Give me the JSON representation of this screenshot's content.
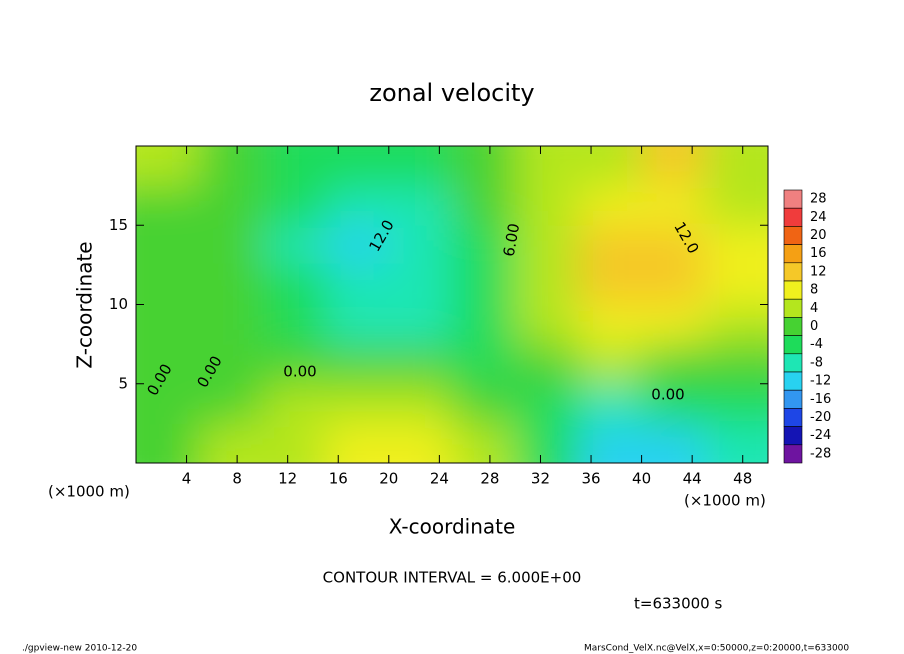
{
  "chart_data": {
    "type": "contour",
    "title": "zonal velocity",
    "xlabel": "X-coordinate",
    "ylabel": "Z-coordinate",
    "x_unit": "(×1000 m)",
    "y_unit": "(×1000 m)",
    "xlim": [
      0,
      50
    ],
    "ylim": [
      0,
      20
    ],
    "xticks": [
      4,
      8,
      12,
      16,
      20,
      24,
      28,
      32,
      36,
      40,
      44,
      48
    ],
    "yticks": [
      5,
      10,
      15
    ],
    "x": [
      2.5,
      7.5,
      12.5,
      17.5,
      22.5,
      27.5,
      32.5,
      37.5,
      42.5,
      47.5
    ],
    "y": [
      1.25,
      3.75,
      6.25,
      8.75,
      11.25,
      13.75,
      16.25,
      18.75
    ],
    "z": [
      [
        0,
        2,
        4,
        6,
        6,
        2,
        -4,
        -14,
        -14,
        -8
      ],
      [
        -2,
        0,
        2,
        4,
        4,
        0,
        -4,
        -8,
        -6,
        -4
      ],
      [
        0,
        0,
        0,
        0,
        0,
        -4,
        0,
        2,
        0,
        -2
      ],
      [
        0,
        0,
        -4,
        -8,
        -8,
        -6,
        2,
        6,
        6,
        4
      ],
      [
        0,
        0,
        -6,
        -10,
        -10,
        -6,
        4,
        10,
        10,
        6
      ],
      [
        0,
        -2,
        -8,
        -12,
        -10,
        -4,
        4,
        10,
        10,
        6
      ],
      [
        0,
        -2,
        -6,
        -10,
        -8,
        -2,
        2,
        6,
        6,
        4
      ],
      [
        2,
        0,
        -4,
        -4,
        -4,
        0,
        2,
        4,
        10,
        4
      ]
    ],
    "levels": [
      28,
      24,
      20,
      16,
      12,
      8,
      4,
      0,
      -4,
      -8,
      -12,
      -16,
      -20,
      -24,
      -28
    ],
    "colors": [
      "#f08080",
      "#f03c3c",
      "#f06414",
      "#f5a014",
      "#f5c828",
      "#f0f01e",
      "#b4e61e",
      "#46d232",
      "#1edc5a",
      "#1ee6b4",
      "#28d2f0",
      "#3296f0",
      "#1e46e6",
      "#1414b4",
      "#6e14a0"
    ],
    "contour_labels": [
      "0.00",
      "0.00",
      "0.00",
      "0.00",
      "12.0",
      "12.0",
      "6.00"
    ],
    "contour_interval": "CONTOUR INTERVAL = 6.000E+00",
    "time_label": "t=633000 s",
    "footer_left": "./gpview-new  2010-12-20",
    "footer_right": "MarsCond_VelX.nc@VelX,x=0:50000,z=0:20000,t=633000"
  }
}
